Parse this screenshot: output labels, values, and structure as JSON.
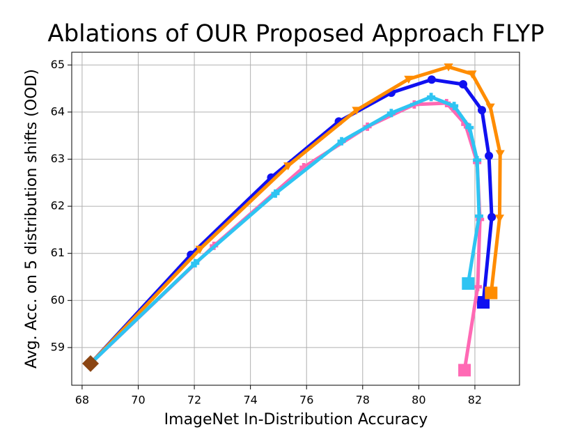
{
  "chart_data": {
    "type": "line",
    "title": "Ablations of OUR Proposed Approach FLYP",
    "x_label": "ImageNet In-Distribution Accuracy",
    "y_label": "Avg. Acc. on 5 distribution shifts (OOD)",
    "xlim": [
      67.63,
      83.59
    ],
    "ylim": [
      58.2,
      65.27
    ],
    "xticks": [
      68,
      70,
      72,
      74,
      76,
      78,
      80,
      82
    ],
    "yticks": [
      59,
      60,
      61,
      62,
      63,
      64,
      65
    ],
    "grid": true,
    "start_point": {
      "x": 68.3,
      "y": 58.66,
      "color": "#8b4513",
      "marker": "diamond"
    },
    "end_marker": "square",
    "series": [
      {
        "color": "#1010f0",
        "marker": "circle",
        "x": [
          68.3,
          71.88,
          74.74,
          77.15,
          79.02,
          80.46,
          81.58,
          82.25,
          82.5,
          82.6,
          82.3
        ],
        "values": [
          58.66,
          60.97,
          62.61,
          63.8,
          64.41,
          64.69,
          64.59,
          64.04,
          63.07,
          61.77,
          59.96
        ]
      },
      {
        "color": "#ff8c00",
        "marker": "triangle-down",
        "x": [
          68.3,
          72.2,
          75.34,
          77.78,
          79.64,
          81.06,
          81.9,
          82.55,
          82.9,
          82.88,
          82.58
        ],
        "values": [
          58.66,
          61.09,
          62.86,
          64.04,
          64.7,
          64.96,
          64.81,
          64.11,
          63.12,
          61.75,
          60.16
        ]
      },
      {
        "color": "#ff69b4",
        "marker": "plus",
        "x": [
          68.3,
          72.7,
          75.9,
          78.17,
          79.84,
          80.99,
          81.66,
          82.08,
          82.18,
          82.1,
          81.63
        ],
        "values": [
          58.66,
          61.16,
          62.83,
          63.69,
          64.16,
          64.19,
          63.74,
          62.93,
          61.72,
          60.29,
          58.52
        ]
      },
      {
        "color": "#2ec4f2",
        "marker": "plus",
        "x": [
          68.3,
          72.03,
          74.89,
          77.25,
          79.02,
          80.44,
          81.26,
          81.81,
          82.08,
          82.15,
          81.76
        ],
        "values": [
          58.66,
          60.79,
          62.27,
          63.38,
          63.98,
          64.32,
          64.13,
          63.67,
          62.98,
          61.79,
          60.36
        ]
      }
    ]
  }
}
